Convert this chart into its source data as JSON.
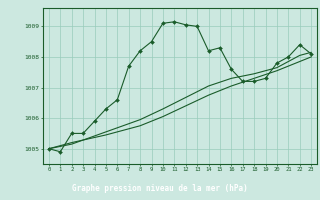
{
  "title": "Graphe pression niveau de la mer (hPa)",
  "background_color": "#cce8e0",
  "title_bg_color": "#2d6e3e",
  "title_text_color": "#ffffff",
  "grid_color": "#99ccbb",
  "line_color": "#1a5c2a",
  "xlim": [
    -0.5,
    23.5
  ],
  "ylim": [
    1004.5,
    1009.6
  ],
  "yticks": [
    1005,
    1006,
    1007,
    1008,
    1009
  ],
  "xticks": [
    0,
    1,
    2,
    3,
    4,
    5,
    6,
    7,
    8,
    9,
    10,
    11,
    12,
    13,
    14,
    15,
    16,
    17,
    18,
    19,
    20,
    21,
    22,
    23
  ],
  "line1_x": [
    0,
    1,
    2,
    3,
    4,
    5,
    6,
    7,
    8,
    9,
    10,
    11,
    12,
    13,
    14,
    15,
    16,
    17,
    18,
    19,
    20,
    21,
    22,
    23
  ],
  "line1_y": [
    1005.0,
    1004.9,
    1005.5,
    1005.5,
    1005.9,
    1006.3,
    1006.6,
    1007.7,
    1008.2,
    1008.5,
    1009.1,
    1009.15,
    1009.05,
    1009.0,
    1008.2,
    1008.3,
    1007.6,
    1007.2,
    1007.2,
    1007.3,
    1007.8,
    1008.0,
    1008.4,
    1008.1
  ],
  "line2_x": [
    0,
    2,
    5,
    8,
    10,
    14,
    16,
    18,
    20,
    22,
    23
  ],
  "line2_y": [
    1005.0,
    1005.2,
    1005.45,
    1005.75,
    1006.05,
    1006.75,
    1007.05,
    1007.3,
    1007.55,
    1007.85,
    1008.0
  ],
  "line3_x": [
    0,
    2,
    5,
    8,
    10,
    14,
    16,
    18,
    20,
    22,
    23
  ],
  "line3_y": [
    1005.0,
    1005.15,
    1005.55,
    1005.95,
    1006.3,
    1007.05,
    1007.3,
    1007.45,
    1007.65,
    1008.05,
    1008.15
  ]
}
